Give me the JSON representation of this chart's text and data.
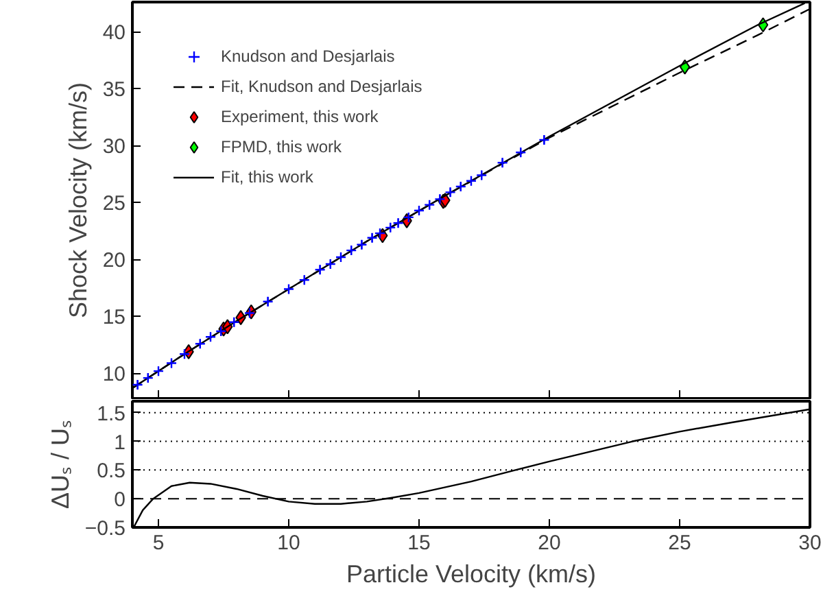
{
  "chart_data": [
    {
      "type": "scatter",
      "ylabel": "Shock Velocity (km/s)",
      "xlim": [
        4,
        30
      ],
      "ylim": [
        7.8,
        42.6
      ],
      "xticks": [
        5,
        10,
        15,
        20,
        25,
        30
      ],
      "yticks": [
        10,
        15,
        20,
        25,
        30,
        35,
        40
      ],
      "tick_labels": "y",
      "grid": false,
      "legend": "top left",
      "series": [
        {
          "name": "Knudson and Desjarlais",
          "type": "scatter",
          "marker": "cross",
          "color": "#0000ff",
          "x": [
            4.2,
            4.6,
            5.0,
            5.5,
            6.0,
            6.6,
            7.0,
            7.4,
            7.9,
            8.5,
            9.2,
            10.0,
            10.6,
            11.2,
            11.6,
            12.0,
            12.4,
            12.8,
            13.2,
            13.5,
            13.9,
            14.2,
            14.6,
            15.0,
            15.4,
            15.8,
            16.2,
            16.6,
            17.0,
            17.4,
            18.2,
            18.9,
            19.8
          ],
          "values": [
            9.0,
            9.6,
            10.2,
            10.9,
            11.7,
            12.6,
            13.2,
            13.7,
            14.5,
            15.3,
            16.3,
            17.4,
            18.2,
            19.1,
            19.6,
            20.2,
            20.8,
            21.3,
            21.9,
            22.3,
            22.8,
            23.2,
            23.7,
            24.3,
            24.8,
            25.3,
            25.9,
            26.4,
            26.9,
            27.4,
            28.5,
            29.4,
            30.5
          ],
          "errors": [
            0.4,
            0.4,
            0.4,
            0.4,
            0.4,
            0.4,
            0.4,
            0.4,
            0.4,
            0.4,
            0.4,
            0.4,
            0.4,
            0.4,
            0.4,
            0.4,
            0.4,
            0.4,
            0.4,
            0.4,
            0.4,
            0.4,
            0.4,
            0.4,
            0.4,
            0.4,
            0.4,
            0.4,
            0.4,
            0.4,
            0.4,
            0.4,
            0.4
          ]
        },
        {
          "name": "Fit, Knudson and Desjarlais",
          "type": "line",
          "line_style": "dashed",
          "color": "#000000",
          "x": [
            4,
            6,
            8,
            10,
            13,
            16,
            20,
            25,
            28,
            30
          ],
          "values": [
            8.7,
            11.7,
            14.6,
            17.4,
            21.6,
            25.6,
            30.7,
            36.4,
            39.7,
            42.0
          ]
        },
        {
          "name": "Experiment, this work",
          "type": "scatter",
          "marker": "diamond",
          "color": "#ff0000",
          "x": [
            6.16,
            7.5,
            7.65,
            8.16,
            8.56,
            13.6,
            14.53,
            15.93,
            16.0
          ],
          "values": [
            11.9,
            13.9,
            14.1,
            14.9,
            15.4,
            22.1,
            23.4,
            25.1,
            25.2
          ]
        },
        {
          "name": "FPMD, this work",
          "type": "scatter",
          "marker": "diamond",
          "color": "#00ff00",
          "x": [
            25.2,
            28.2
          ],
          "values": [
            36.9,
            40.6
          ]
        },
        {
          "name": "Fit, this work",
          "type": "line",
          "line_style": "solid",
          "color": "#000000",
          "x": [
            4,
            6,
            8,
            10,
            13,
            16,
            20,
            25,
            28,
            29.8
          ],
          "values": [
            8.7,
            11.7,
            14.6,
            17.4,
            21.6,
            25.6,
            30.8,
            37.0,
            40.6,
            42.5
          ]
        }
      ]
    },
    {
      "type": "line",
      "xlabel": "Particle Velocity (km/s)",
      "ylabel": "ΔUₛ / Uₛ",
      "xlim": [
        4,
        30
      ],
      "ylim": [
        -0.5,
        1.7
      ],
      "xticks": [
        5,
        10,
        15,
        20,
        25,
        30
      ],
      "yticks": [
        -0.5,
        0,
        0.5,
        1,
        1.5
      ],
      "grid": false,
      "ref_lines": [
        {
          "axis": "y",
          "value": 0,
          "line_style": "dashed"
        },
        {
          "axis": "y",
          "value": 0.5,
          "line_style": "dotted"
        },
        {
          "axis": "y",
          "value": 1,
          "line_style": "dotted"
        },
        {
          "axis": "y",
          "value": 1.5,
          "line_style": "dotted"
        }
      ],
      "series": [
        {
          "color": "#000000",
          "x": [
            4.05,
            4.4,
            4.8,
            5.5,
            6.2,
            7,
            8,
            9,
            10,
            11,
            12,
            13,
            14,
            15,
            17,
            18.7,
            20,
            23.2,
            25,
            27,
            30
          ],
          "values": [
            -0.5,
            -0.2,
            0,
            0.22,
            0.28,
            0.26,
            0.17,
            0.05,
            -0.05,
            -0.09,
            -0.09,
            -0.05,
            0.02,
            0.1,
            0.3,
            0.5,
            0.65,
            1.0,
            1.17,
            1.33,
            1.56
          ]
        }
      ]
    }
  ]
}
